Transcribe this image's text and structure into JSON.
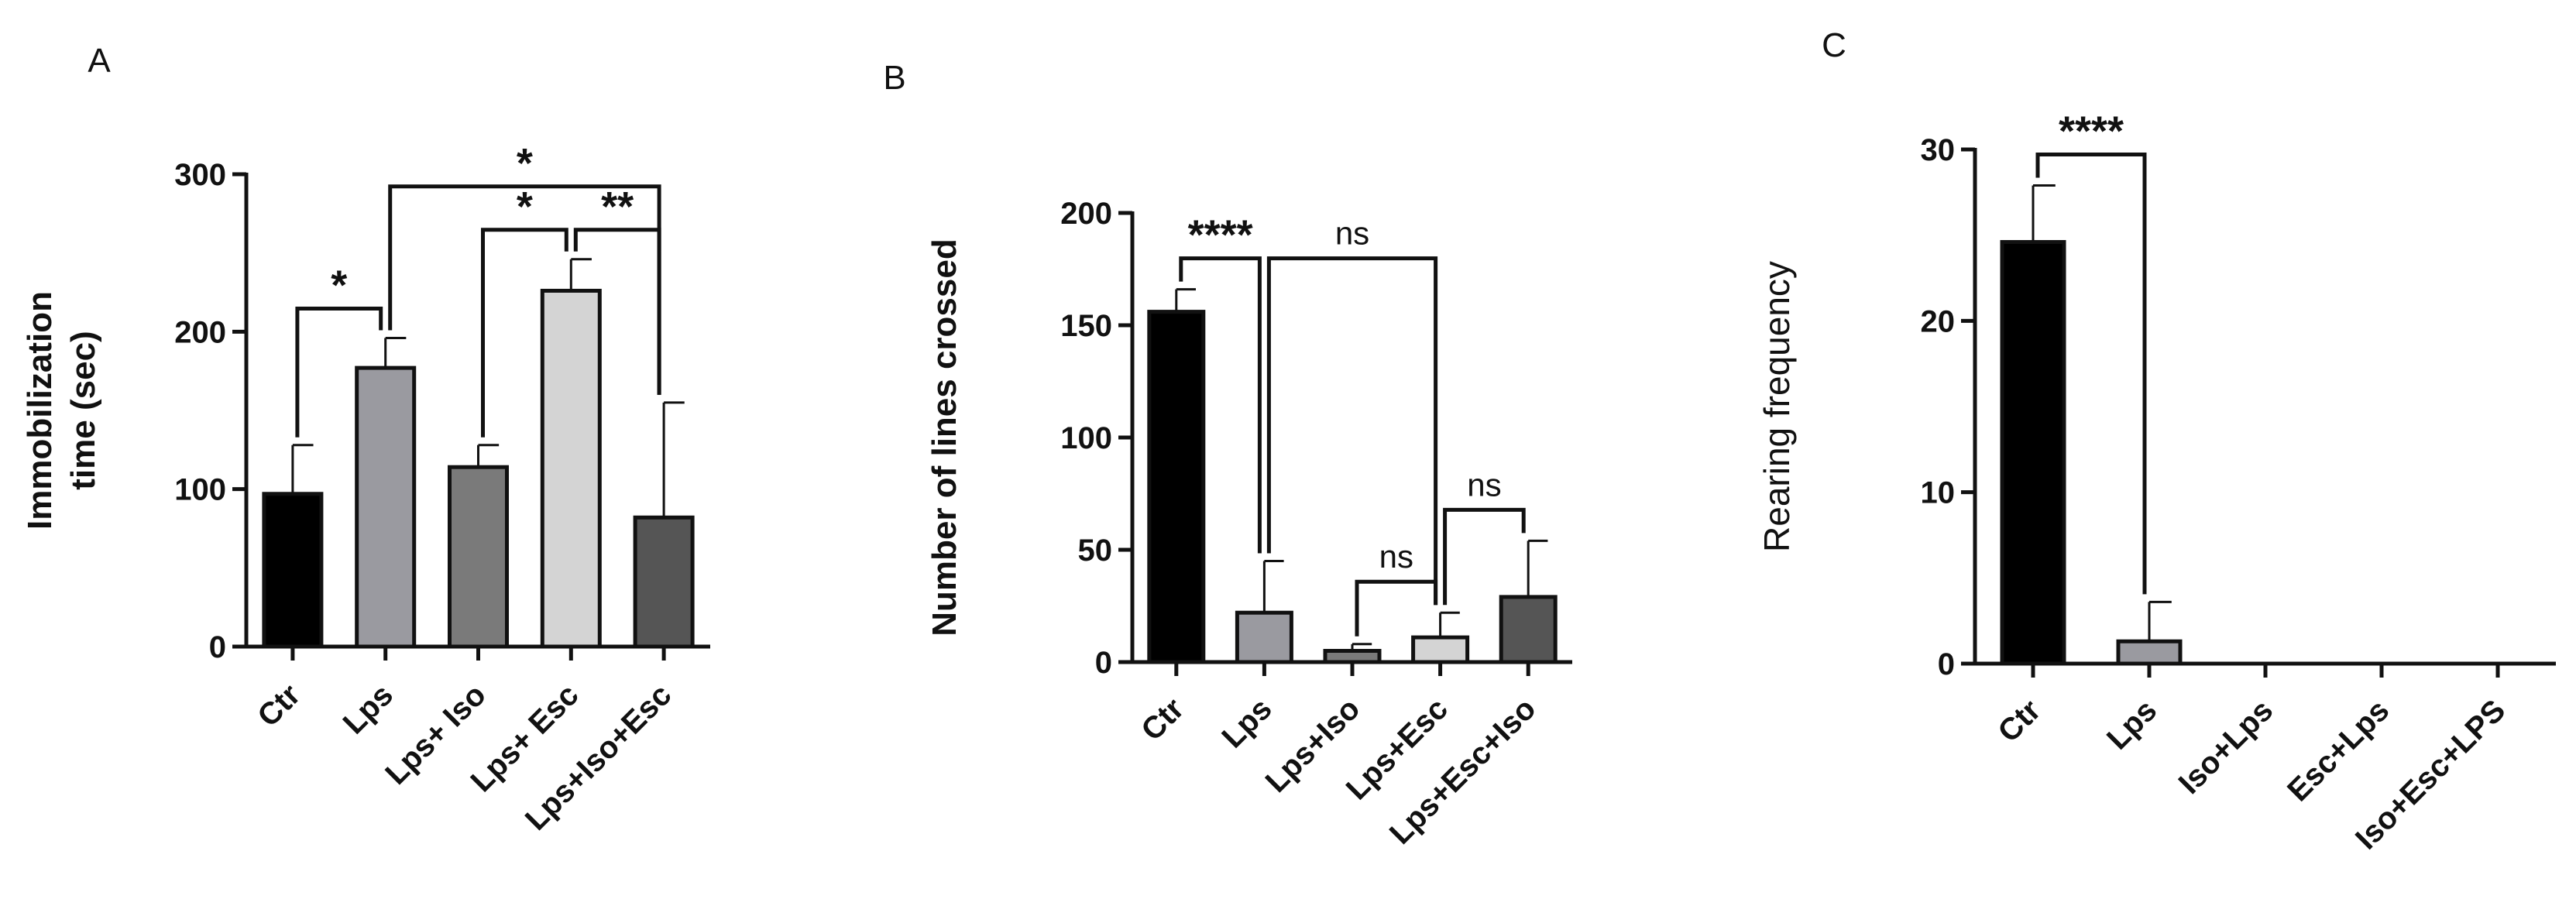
{
  "colors": {
    "axis": "#111111",
    "bar_fills": [
      "#000000",
      "#9a9aa0",
      "#7a7a7a",
      "#d4d4d4",
      "#555555"
    ]
  },
  "chart_data": [
    {
      "panel": "A",
      "type": "bar",
      "ylabel_lines": [
        "Immobilization",
        "time (sec)"
      ],
      "ylabel_bold": true,
      "ylim": [
        0,
        300
      ],
      "yticks": [
        0,
        100,
        200,
        300
      ],
      "categories": [
        "Ctr",
        "Lps",
        "Lps+ Iso",
        "Lps+ Esc",
        "Lps+Iso+Esc"
      ],
      "values": [
        97,
        177,
        114,
        226,
        82
      ],
      "errors": [
        31,
        19,
        14,
        20,
        73
      ],
      "fills": [
        "#000000",
        "#9a9aa0",
        "#7a7a7a",
        "#d4d4d4",
        "#555555"
      ],
      "grid": false,
      "significance": [
        {
          "from": 0,
          "to": 1,
          "label": "*"
        },
        {
          "from": 1,
          "to": 4,
          "label": "*"
        },
        {
          "from": 2,
          "to": 3,
          "label": "*"
        },
        {
          "from": 3,
          "to": 4,
          "label": "**"
        }
      ]
    },
    {
      "panel": "B",
      "type": "bar",
      "ylabel_lines": [
        "Number of lines crossed"
      ],
      "ylabel_bold": true,
      "ylim": [
        0,
        200
      ],
      "yticks": [
        0,
        50,
        100,
        150,
        200
      ],
      "categories": [
        "Ctr",
        "Lps",
        "Lps+Iso",
        "Lps+Esc",
        "Lps+Esc+Iso"
      ],
      "values": [
        156,
        22,
        5,
        11,
        29
      ],
      "errors": [
        10,
        23,
        3,
        11,
        25
      ],
      "fills": [
        "#000000",
        "#9a9aa0",
        "#7a7a7a",
        "#d4d4d4",
        "#555555"
      ],
      "grid": false,
      "significance": [
        {
          "from": 0,
          "to": 1,
          "label": "****"
        },
        {
          "from": 1,
          "to": 3,
          "label": "ns"
        },
        {
          "from": 2,
          "to": 3,
          "label": "ns"
        },
        {
          "from": 3,
          "to": 4,
          "label": "ns"
        }
      ]
    },
    {
      "panel": "C",
      "type": "bar",
      "ylabel_lines": [
        "Rearing frequency"
      ],
      "ylabel_bold": false,
      "ylim": [
        0,
        30
      ],
      "yticks": [
        0,
        10,
        20,
        30
      ],
      "categories": [
        "Ctr",
        "Lps",
        "Iso+Lps",
        "Esc+Lps",
        "Iso+Esc+LPS"
      ],
      "values": [
        24.6,
        1.3,
        0,
        0,
        0
      ],
      "errors": [
        3.3,
        2.3,
        0,
        0,
        0
      ],
      "fills": [
        "#000000",
        "#9a9aa0",
        "#7a7a7a",
        "#d4d4d4",
        "#555555"
      ],
      "grid": false,
      "significance": [
        {
          "from": 0,
          "to": 1,
          "label": "****"
        }
      ]
    }
  ]
}
